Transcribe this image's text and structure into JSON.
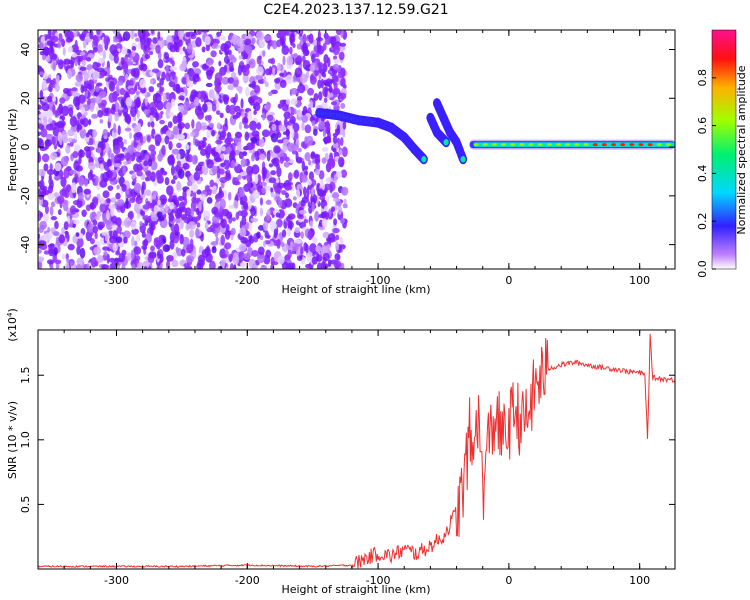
{
  "title": "C2E4.2023.137.12.59.G21",
  "chart_data": [
    {
      "type": "heatmap",
      "xlabel": "Height of straight line (km)",
      "ylabel": "Frequency (Hz)",
      "xlim": [
        -360,
        127
      ],
      "ylim": [
        -50,
        48
      ],
      "xticks": [
        -300,
        -200,
        -100,
        0,
        100
      ],
      "xtick_labels": [
        "-300",
        "-200",
        "-100",
        "0",
        "100"
      ],
      "yticks": [
        -40,
        -20,
        0,
        20,
        40
      ],
      "ytick_labels": [
        "-40",
        "-20",
        "0",
        "20",
        "40"
      ],
      "noise_region_x": [
        -360,
        -125
      ],
      "signal_trace": [
        {
          "x": -145,
          "y": 14
        },
        {
          "x": -130,
          "y": 13
        },
        {
          "x": -115,
          "y": 11
        },
        {
          "x": -100,
          "y": 10
        },
        {
          "x": -90,
          "y": 8
        },
        {
          "x": -80,
          "y": 4
        },
        {
          "x": -72,
          "y": -1
        },
        {
          "x": -65,
          "y": -5
        }
      ],
      "signal_trace_b": [
        {
          "x": -55,
          "y": 18
        },
        {
          "x": -50,
          "y": 12
        },
        {
          "x": -45,
          "y": 6
        },
        {
          "x": -40,
          "y": 2
        },
        {
          "x": -35,
          "y": -5
        }
      ],
      "signal_trace_c": [
        {
          "x": -60,
          "y": 12
        },
        {
          "x": -55,
          "y": 6
        },
        {
          "x": -48,
          "y": 2
        }
      ],
      "signal_band": {
        "x_start": -30,
        "x_end": 127,
        "y": 1
      },
      "grid": false
    },
    {
      "type": "line",
      "xlabel": "Height of straight line (km)",
      "ylabel": "SNR (10 * v/v)",
      "yscale_label": "(x10",
      "yscale_exp": "4",
      "yscale_close": ")",
      "xlim": [
        -360,
        127
      ],
      "ylim": [
        0,
        1.85
      ],
      "xticks": [
        -300,
        -200,
        -100,
        0,
        100
      ],
      "xtick_labels": [
        "-300",
        "-200",
        "-100",
        "0",
        "100"
      ],
      "yticks": [
        0.5,
        1.0,
        1.5
      ],
      "ytick_labels": [
        "0.5",
        "1.0",
        "1.5"
      ],
      "series": [
        {
          "color": "#ee3030",
          "points": [
            [
              -360,
              0.02
            ],
            [
              -300,
              0.02
            ],
            [
              -250,
              0.02
            ],
            [
              -200,
              0.03
            ],
            [
              -150,
              0.02
            ],
            [
              -120,
              0.03
            ],
            [
              -110,
              0.08
            ],
            [
              -100,
              0.12
            ],
            [
              -90,
              0.1
            ],
            [
              -80,
              0.15
            ],
            [
              -70,
              0.12
            ],
            [
              -60,
              0.18
            ],
            [
              -50,
              0.25
            ],
            [
              -45,
              0.35
            ],
            [
              -40,
              0.45
            ],
            [
              -35,
              0.6
            ],
            [
              -30,
              1.05
            ],
            [
              -27,
              0.8
            ],
            [
              -25,
              1.3
            ],
            [
              -22,
              1.0
            ],
            [
              -20,
              0.6
            ],
            [
              -17,
              0.85
            ],
            [
              -15,
              1.05
            ],
            [
              -12,
              1.1
            ],
            [
              -10,
              1.2
            ],
            [
              -5,
              1.0
            ],
            [
              0,
              1.1
            ],
            [
              5,
              1.25
            ],
            [
              10,
              1.1
            ],
            [
              15,
              1.2
            ],
            [
              20,
              1.4
            ],
            [
              25,
              1.5
            ],
            [
              30,
              1.55
            ],
            [
              40,
              1.58
            ],
            [
              50,
              1.6
            ],
            [
              60,
              1.58
            ],
            [
              70,
              1.56
            ],
            [
              80,
              1.55
            ],
            [
              90,
              1.53
            ],
            [
              100,
              1.52
            ],
            [
              104,
              1.5
            ],
            [
              106,
              1.0
            ],
            [
              108,
              1.8
            ],
            [
              110,
              1.48
            ],
            [
              120,
              1.47
            ],
            [
              127,
              1.46
            ]
          ]
        }
      ],
      "grid": false
    }
  ],
  "colorbar": {
    "label": "Normalized spectral amplitude",
    "range": [
      0,
      1
    ],
    "ticks": [
      0.0,
      0.2,
      0.4,
      0.6,
      0.8
    ],
    "tick_labels": [
      "0.0",
      "0.2",
      "0.4",
      "0.6",
      "0.8"
    ],
    "colors": [
      "#ffffff",
      "#a040ff",
      "#2020ff",
      "#00e0ff",
      "#00ff60",
      "#c0ff00",
      "#ffa000",
      "#ff0000",
      "#ff2080"
    ]
  }
}
